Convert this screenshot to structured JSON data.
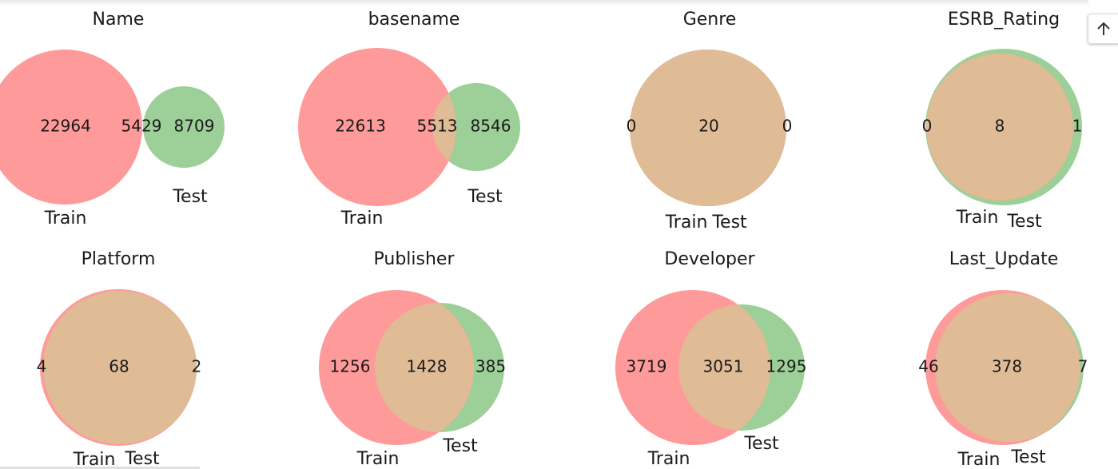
{
  "colors": {
    "train": "#ff9a9a",
    "test": "#9dcf98",
    "overlap": "#dfbb96"
  },
  "scroll_button": {
    "icon": "arrow-up-icon"
  },
  "chart_data": [
    {
      "type": "venn",
      "title": "Name",
      "sets": [
        "Train",
        "Test"
      ],
      "only_a": 22964,
      "both": 5429,
      "only_b": 8709
    },
    {
      "type": "venn",
      "title": "basename",
      "sets": [
        "Train",
        "Test"
      ],
      "only_a": 22613,
      "both": 5513,
      "only_b": 8546
    },
    {
      "type": "venn",
      "title": "Genre",
      "sets": [
        "Train",
        "Test"
      ],
      "only_a": 0,
      "both": 20,
      "only_b": 0
    },
    {
      "type": "venn",
      "title": "ESRB_Rating",
      "sets": [
        "Train",
        "Test"
      ],
      "only_a": 0,
      "both": 8,
      "only_b": 1
    },
    {
      "type": "venn",
      "title": "Platform",
      "sets": [
        "Train",
        "Test"
      ],
      "only_a": 4,
      "both": 68,
      "only_b": 2
    },
    {
      "type": "venn",
      "title": "Publisher",
      "sets": [
        "Train",
        "Test"
      ],
      "only_a": 1256,
      "both": 1428,
      "only_b": 385
    },
    {
      "type": "venn",
      "title": "Developer",
      "sets": [
        "Train",
        "Test"
      ],
      "only_a": 3719,
      "both": 3051,
      "only_b": 1295
    },
    {
      "type": "venn",
      "title": "Last_Update",
      "sets": [
        "Train",
        "Test"
      ],
      "only_a": 46,
      "both": 378,
      "only_b": 7
    }
  ]
}
